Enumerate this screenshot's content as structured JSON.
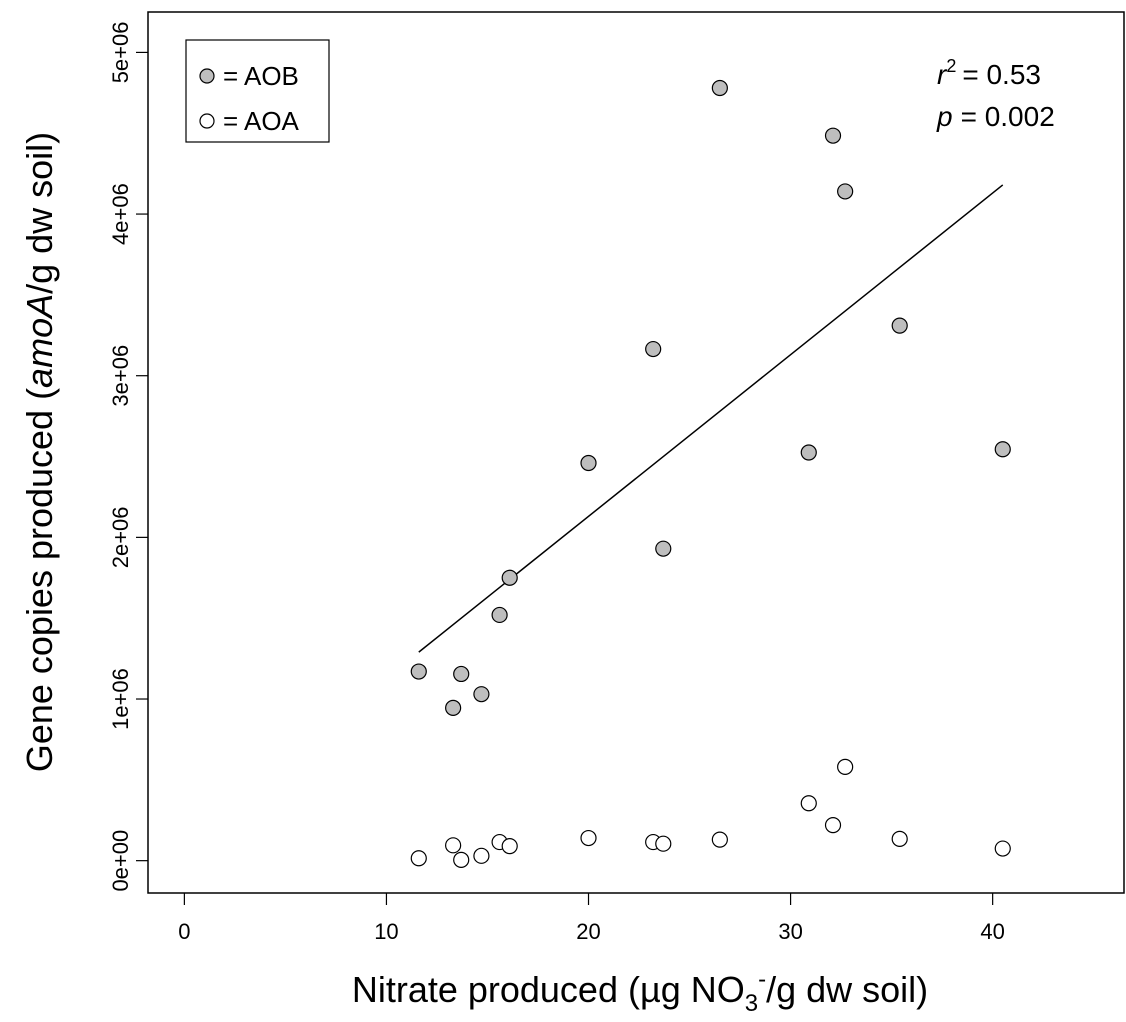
{
  "chart_data": {
    "type": "scatter",
    "title": "",
    "xlabel": {
      "prefix": "Nitrate produced (µg NO",
      "sub": "3",
      "sup": "-",
      "suffix": "/g dw soil)"
    },
    "ylabel": {
      "prefix": "Gene copies produced (",
      "italic": "amoA",
      "suffix": "/g dw soil)"
    },
    "xlim": [
      -1.8,
      46.5
    ],
    "ylim": [
      -200000,
      5250000
    ],
    "xticks": [
      {
        "value": 0,
        "label": "0"
      },
      {
        "value": 10,
        "label": "10"
      },
      {
        "value": 20,
        "label": "20"
      },
      {
        "value": 30,
        "label": "30"
      },
      {
        "value": 40,
        "label": "40"
      }
    ],
    "yticks": [
      {
        "value": 0,
        "label": "0e+00"
      },
      {
        "value": 1000000,
        "label": "1e+06"
      },
      {
        "value": 2000000,
        "label": "2e+06"
      },
      {
        "value": 3000000,
        "label": "3e+06"
      },
      {
        "value": 4000000,
        "label": "4e+06"
      },
      {
        "value": 5000000,
        "label": "5e+06"
      }
    ],
    "grid": false,
    "legend_position": "top-left",
    "series": [
      {
        "name": "AOB",
        "legend_label": "= AOB",
        "fill": "#bebebe",
        "stroke": "#000000",
        "points": [
          {
            "x": 11.6,
            "y": 1170000
          },
          {
            "x": 13.3,
            "y": 945000
          },
          {
            "x": 13.7,
            "y": 1155000
          },
          {
            "x": 14.7,
            "y": 1030000
          },
          {
            "x": 15.6,
            "y": 1520000
          },
          {
            "x": 16.1,
            "y": 1750000
          },
          {
            "x": 20.0,
            "y": 2460000
          },
          {
            "x": 23.2,
            "y": 3165000
          },
          {
            "x": 23.7,
            "y": 1930000
          },
          {
            "x": 26.5,
            "y": 4780000
          },
          {
            "x": 30.9,
            "y": 2525000
          },
          {
            "x": 32.1,
            "y": 4485000
          },
          {
            "x": 32.7,
            "y": 4140000
          },
          {
            "x": 35.4,
            "y": 3310000
          },
          {
            "x": 40.5,
            "y": 2545000
          }
        ]
      },
      {
        "name": "AOA",
        "legend_label": "= AOA",
        "fill": "#ffffff",
        "stroke": "#000000",
        "points": [
          {
            "x": 11.6,
            "y": 15000
          },
          {
            "x": 13.3,
            "y": 95000
          },
          {
            "x": 13.7,
            "y": 5000
          },
          {
            "x": 14.7,
            "y": 30000
          },
          {
            "x": 15.6,
            "y": 115000
          },
          {
            "x": 16.1,
            "y": 90000
          },
          {
            "x": 20.0,
            "y": 140000
          },
          {
            "x": 23.2,
            "y": 115000
          },
          {
            "x": 23.7,
            "y": 105000
          },
          {
            "x": 26.5,
            "y": 130000
          },
          {
            "x": 30.9,
            "y": 355000
          },
          {
            "x": 32.1,
            "y": 220000
          },
          {
            "x": 32.7,
            "y": 580000
          },
          {
            "x": 35.4,
            "y": 135000
          },
          {
            "x": 40.5,
            "y": 75000
          }
        ]
      }
    ],
    "regression": {
      "series": "AOB",
      "x_start": 11.6,
      "y_start": 1290000,
      "x_end": 40.5,
      "y_end": 4180000
    },
    "annotations": {
      "r2": {
        "symbol": "r",
        "sup": "2",
        "text": "= 0.53"
      },
      "p": {
        "symbol": "p",
        "text": "= 0.002"
      }
    }
  }
}
